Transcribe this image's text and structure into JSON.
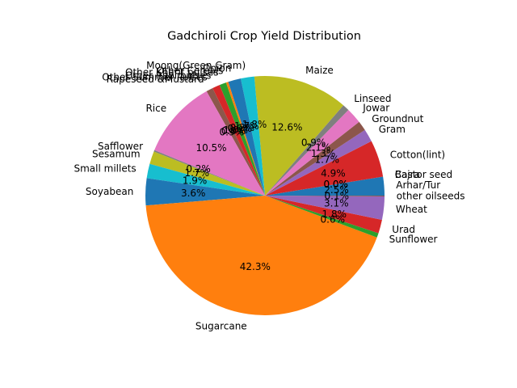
{
  "chart_data": {
    "type": "pie",
    "title": "Gadchiroli Crop Yield Distribution",
    "start_angle_deg": 0,
    "direction": "counterclockwise",
    "slices": [
      {
        "label": "Arhar/Tur",
        "value": 2.5,
        "pct_label": "2.5%",
        "color": "#1f77b4"
      },
      {
        "label": "Bajra",
        "value": 0.0,
        "pct_label": "0.0%",
        "color": "#ff7f0e"
      },
      {
        "label": "Castor seed",
        "value": 0.0,
        "pct_label": "0.0%",
        "color": "#2ca02c"
      },
      {
        "label": "Cotton(lint)",
        "value": 4.9,
        "pct_label": "4.9%",
        "color": "#d62728"
      },
      {
        "label": "Gram",
        "value": 1.7,
        "pct_label": "1.7%",
        "color": "#9467bd"
      },
      {
        "label": "Groundnut",
        "value": 1.3,
        "pct_label": "1.3%",
        "color": "#8c564b"
      },
      {
        "label": "Jowar",
        "value": 2.1,
        "pct_label": "2.1%",
        "color": "#e377c2"
      },
      {
        "label": "Linseed",
        "value": 0.9,
        "pct_label": "0.9%",
        "color": "#7f7f7f"
      },
      {
        "label": "Maize",
        "value": 12.6,
        "pct_label": "12.6%",
        "color": "#bcbd22"
      },
      {
        "label": "Moong(Green Gram)",
        "value": 1.8,
        "pct_label": "1.8%",
        "color": "#17becf"
      },
      {
        "label": "Onion",
        "value": 1.7,
        "pct_label": "1.7%",
        "color": "#1f77b4"
      },
      {
        "label": "Other Cereals",
        "value": 0.3,
        "pct_label": "0.3%",
        "color": "#ff7f0e"
      },
      {
        "label": "Other Kharif pulses",
        "value": 0.9,
        "pct_label": "0.9%",
        "color": "#2ca02c"
      },
      {
        "label": "Other Rabi pulses",
        "value": 1.0,
        "pct_label": "1.0%",
        "color": "#d62728"
      },
      {
        "label": "Other Summer Pulses",
        "value": 0.0,
        "pct_label": "0.0%",
        "color": "#9467bd"
      },
      {
        "label": "Rapeseed &Mustard",
        "value": 0.9,
        "pct_label": "0.9%",
        "color": "#8c564b"
      },
      {
        "label": "Rice",
        "value": 10.5,
        "pct_label": "10.5%",
        "color": "#e377c2"
      },
      {
        "label": "Safflower",
        "value": 0.2,
        "pct_label": "0.2%",
        "color": "#7f7f7f"
      },
      {
        "label": "Sesamum",
        "value": 1.7,
        "pct_label": "1.7%",
        "color": "#bcbd22"
      },
      {
        "label": "Small millets",
        "value": 1.9,
        "pct_label": "1.9%",
        "color": "#17becf"
      },
      {
        "label": "Soyabean",
        "value": 3.6,
        "pct_label": "3.6%",
        "color": "#1f77b4"
      },
      {
        "label": "Sugarcane",
        "value": 42.3,
        "pct_label": "42.3%",
        "color": "#ff7f0e"
      },
      {
        "label": "Sunflower",
        "value": 0.6,
        "pct_label": "0.6%",
        "color": "#2ca02c"
      },
      {
        "label": "Urad",
        "value": 1.8,
        "pct_label": "1.8%",
        "color": "#d62728"
      },
      {
        "label": "Wheat",
        "value": 3.1,
        "pct_label": "3.1%",
        "color": "#9467bd"
      },
      {
        "label": "other oilseeds",
        "value": 0.1,
        "pct_label": "0.1%",
        "color": "#8c564b"
      }
    ]
  }
}
